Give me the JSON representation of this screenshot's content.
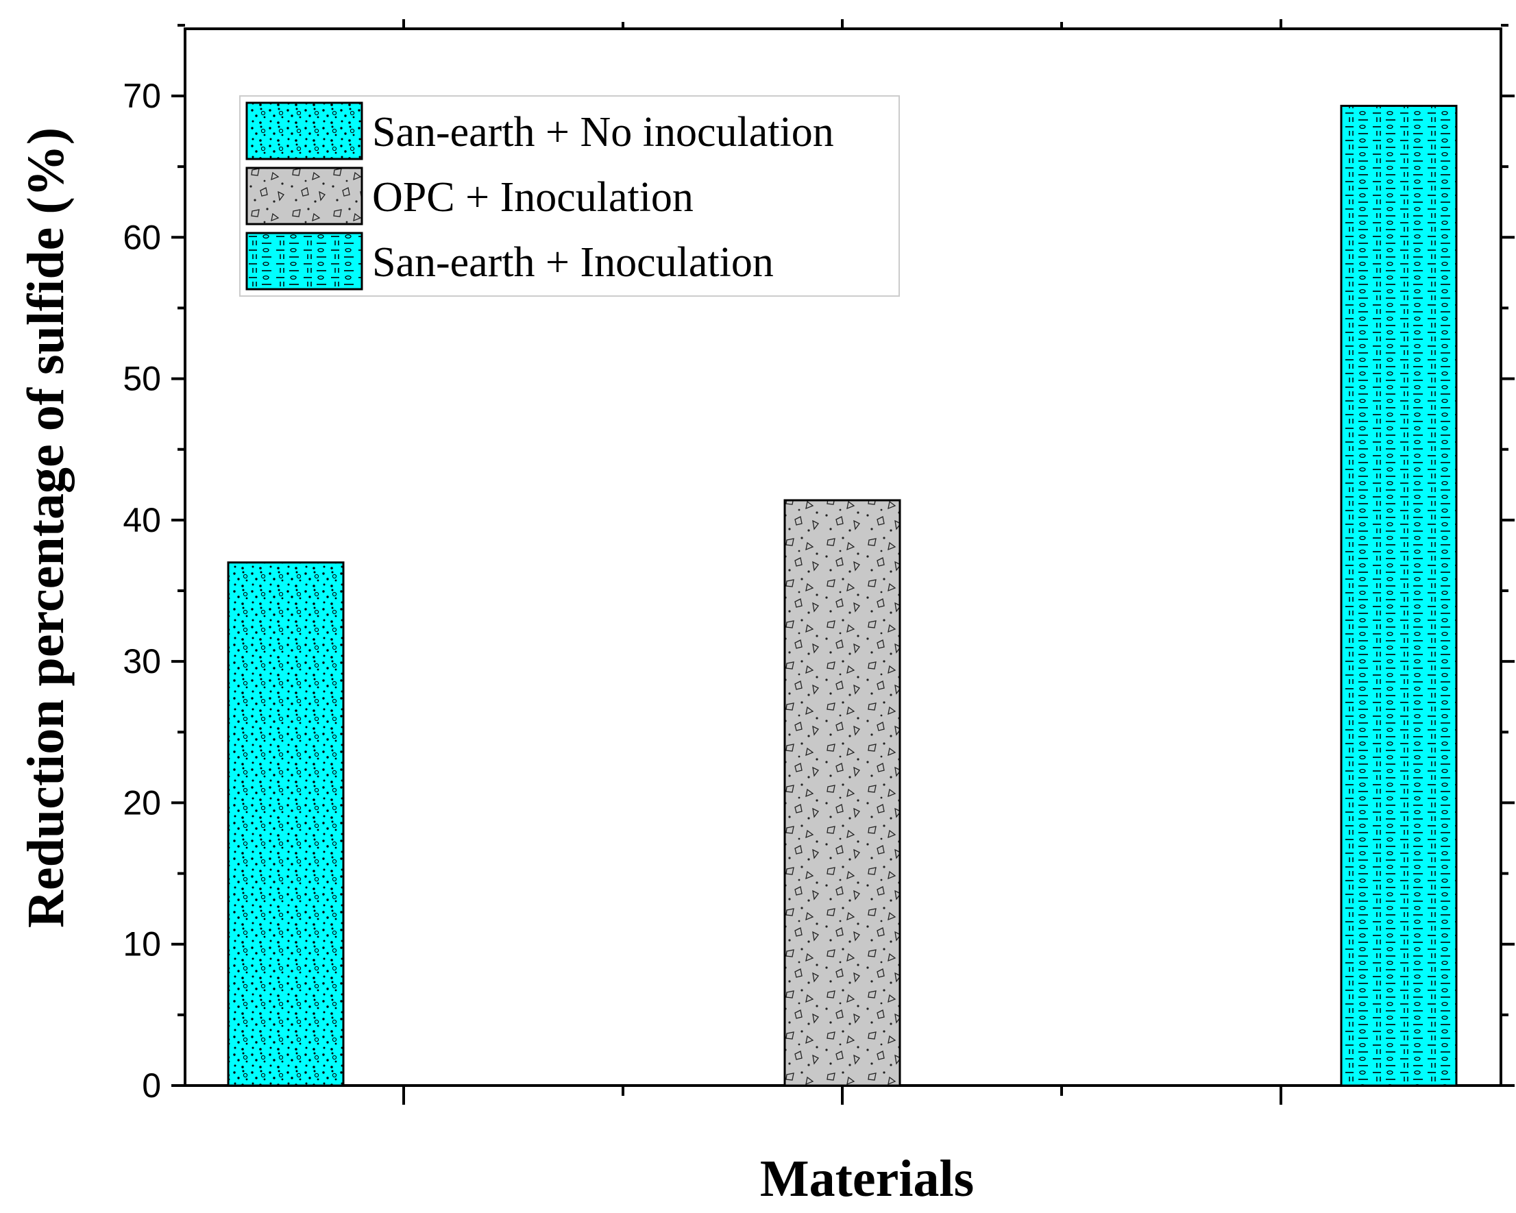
{
  "chart_data": {
    "type": "bar",
    "title": "",
    "xlabel": "Materials",
    "ylabel": "Reduction percentage of sulfide (%)",
    "ylim": [
      0,
      75
    ],
    "yticks": [
      0,
      10,
      20,
      30,
      40,
      50,
      60,
      70
    ],
    "categories": [
      "San-earth + No inoculation",
      "OPC + Inoculation",
      "San-earth + Inoculation"
    ],
    "values": [
      37.0,
      41.4,
      69.3
    ],
    "series_colors": [
      "#00ffff",
      "#c8c8c8",
      "#00ffff"
    ],
    "legend": {
      "position": "top-left",
      "entries": [
        "San-earth + No inoculation",
        "OPC + Inoculation",
        "San-earth + Inoculation"
      ]
    },
    "grid": false
  }
}
